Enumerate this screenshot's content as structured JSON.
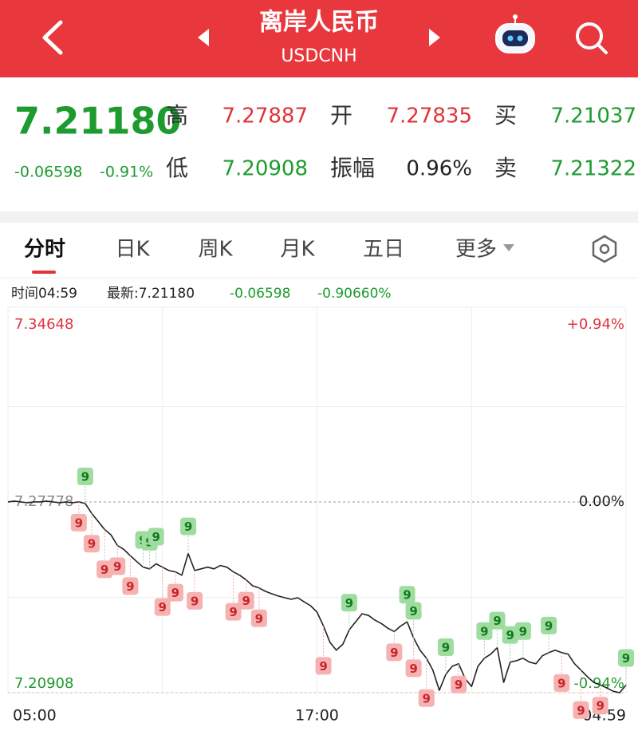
{
  "header": {
    "title": "离岸人民币",
    "subtitle": "USDCNH"
  },
  "quote": {
    "price": "7.21180",
    "change": "-0.06598",
    "change_pct": "-0.91%",
    "rows": [
      [
        {
          "label": "高",
          "value": "7.27887",
          "tone": "up"
        },
        {
          "label": "开",
          "value": "7.27835",
          "tone": "up"
        },
        {
          "label": "买",
          "value": "7.21037",
          "tone": "down"
        }
      ],
      [
        {
          "label": "低",
          "value": "7.20908",
          "tone": "down"
        },
        {
          "label": "振幅",
          "value": "0.96%",
          "tone": "flat"
        },
        {
          "label": "卖",
          "value": "7.21322",
          "tone": "down"
        }
      ]
    ]
  },
  "tabs": [
    "分时",
    "日K",
    "周K",
    "月K",
    "五日",
    "更多"
  ],
  "info_bar": {
    "time": "时间04:59",
    "latest": "最新:7.21180",
    "change": "-0.06598",
    "change_pct": "-0.90660%"
  },
  "chart_data": {
    "type": "line",
    "color": "#222222",
    "up_color": "#e0333a",
    "down_color": "#1e9b2f",
    "grid": true,
    "categories": [
      "05:00",
      null,
      null,
      null,
      null,
      null,
      null,
      null,
      null,
      null,
      null,
      null,
      null,
      null,
      null,
      null,
      null,
      null,
      null,
      null,
      null,
      null,
      null,
      null,
      null,
      null,
      null,
      null,
      null,
      null,
      null,
      null,
      null,
      null,
      null,
      null,
      null,
      null,
      null,
      null,
      null,
      null,
      null,
      null,
      null,
      null,
      null,
      null,
      "17:00",
      null,
      null,
      null,
      null,
      null,
      null,
      null,
      null,
      null,
      null,
      null,
      null,
      null,
      null,
      null,
      null,
      null,
      null,
      null,
      null,
      null,
      null,
      null,
      null,
      null,
      null,
      null,
      null,
      null,
      null,
      null,
      null,
      null,
      null,
      null,
      null,
      null,
      null,
      null,
      null,
      null,
      null,
      null,
      null,
      null,
      null,
      null,
      "04:59"
    ],
    "values": [
      7.2778,
      7.2781,
      7.2778,
      7.2775,
      7.2778,
      7.2778,
      7.2781,
      7.2778,
      7.2775,
      7.2778,
      7.2775,
      7.2778,
      7.2772,
      7.2737,
      7.2708,
      7.2679,
      7.2659,
      7.2621,
      7.2607,
      7.2584,
      7.2563,
      7.2543,
      7.2537,
      7.2555,
      7.2543,
      7.2531,
      7.2526,
      7.2514,
      7.2592,
      7.2531,
      7.2537,
      7.2543,
      7.2537,
      7.2549,
      7.2543,
      7.2526,
      7.2514,
      7.2497,
      7.2476,
      7.2468,
      7.2456,
      7.2447,
      7.2439,
      7.2433,
      7.2427,
      7.2433,
      7.2418,
      7.2404,
      7.2381,
      7.2331,
      7.2273,
      7.2244,
      7.2265,
      7.2317,
      7.2346,
      7.2375,
      7.2369,
      7.2352,
      7.234,
      7.2323,
      7.2311,
      7.2331,
      7.2346,
      7.2288,
      7.2244,
      7.2215,
      7.2172,
      7.2099,
      7.2157,
      7.2186,
      7.2195,
      7.2142,
      7.2113,
      7.2186,
      7.2215,
      7.223,
      7.2253,
      7.2128,
      7.2201,
      7.2206,
      7.2215,
      7.2201,
      7.2195,
      7.2224,
      7.2235,
      7.2244,
      7.2235,
      7.223,
      7.2195,
      7.2172,
      7.2148,
      7.2128,
      7.2119,
      7.2108,
      7.2096,
      7.20908,
      7.2118
    ],
    "ylim": [
      7.20908,
      7.34648
    ],
    "yticks": [
      7.20908,
      7.27778,
      7.34648
    ],
    "y2lim": [
      -0.94,
      0.94
    ],
    "y2ticks": [
      {
        "value": -0.94,
        "label": "-0.94%"
      },
      {
        "value": 0,
        "label": "0.00%"
      },
      {
        "value": 0.94,
        "label": "+0.94%"
      }
    ],
    "signals": [
      {
        "index": 12,
        "label": "9",
        "kind": "buy"
      },
      {
        "index": 21,
        "label": "9",
        "kind": "buy"
      },
      {
        "index": 22,
        "label": "9",
        "kind": "buy"
      },
      {
        "index": 23,
        "label": "9",
        "kind": "buy"
      },
      {
        "index": 28,
        "label": "9",
        "kind": "buy"
      },
      {
        "index": 53,
        "label": "9",
        "kind": "buy"
      },
      {
        "index": 62,
        "label": "9",
        "kind": "buy"
      },
      {
        "index": 63,
        "label": "9",
        "kind": "buy"
      },
      {
        "index": 68,
        "label": "9",
        "kind": "buy"
      },
      {
        "index": 74,
        "label": "9",
        "kind": "buy"
      },
      {
        "index": 76,
        "label": "9",
        "kind": "buy"
      },
      {
        "index": 78,
        "label": "9",
        "kind": "buy"
      },
      {
        "index": 80,
        "label": "9",
        "kind": "buy"
      },
      {
        "index": 84,
        "label": "9",
        "kind": "buy"
      },
      {
        "index": 96,
        "label": "9",
        "kind": "buy"
      },
      {
        "index": 11,
        "label": "9",
        "kind": "sell"
      },
      {
        "index": 13,
        "label": "9",
        "kind": "sell"
      },
      {
        "index": 15,
        "label": "9",
        "kind": "sell"
      },
      {
        "index": 17,
        "label": "9",
        "kind": "sell"
      },
      {
        "index": 19,
        "label": "9",
        "kind": "sell"
      },
      {
        "index": 24,
        "label": "9",
        "kind": "sell"
      },
      {
        "index": 26,
        "label": "9",
        "kind": "sell"
      },
      {
        "index": 29,
        "label": "9",
        "kind": "sell"
      },
      {
        "index": 35,
        "label": "9",
        "kind": "sell"
      },
      {
        "index": 37,
        "label": "9",
        "kind": "sell"
      },
      {
        "index": 39,
        "label": "9",
        "kind": "sell"
      },
      {
        "index": 49,
        "label": "9",
        "kind": "sell"
      },
      {
        "index": 60,
        "label": "9",
        "kind": "sell"
      },
      {
        "index": 63,
        "label": "9",
        "kind": "sell"
      },
      {
        "index": 65,
        "label": "9",
        "kind": "sell"
      },
      {
        "index": 70,
        "label": "9",
        "kind": "sell"
      },
      {
        "index": 86,
        "label": "9",
        "kind": "sell"
      },
      {
        "index": 89,
        "label": "9",
        "kind": "sell"
      },
      {
        "index": 92,
        "label": "9",
        "kind": "sell"
      }
    ]
  }
}
